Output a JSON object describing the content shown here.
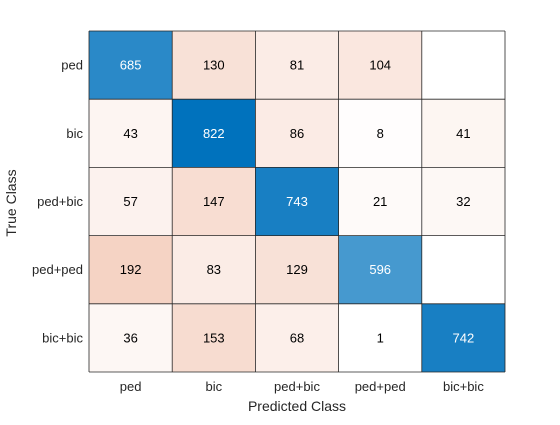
{
  "chart_data": {
    "type": "heatmap",
    "subtype": "confusion_matrix",
    "xlabel": "Predicted Class",
    "ylabel": "True Class",
    "row_labels": [
      "ped",
      "bic",
      "ped+bic",
      "ped+ped",
      "bic+bic"
    ],
    "col_labels": [
      "ped",
      "bic",
      "ped+bic",
      "ped+ped",
      "bic+bic"
    ],
    "values": [
      [
        685,
        130,
        81,
        104,
        null
      ],
      [
        43,
        822,
        86,
        8,
        41
      ],
      [
        57,
        147,
        743,
        21,
        32
      ],
      [
        192,
        83,
        129,
        596,
        null
      ],
      [
        36,
        153,
        68,
        1,
        742
      ]
    ],
    "colors": {
      "diagonal_max": "#0072bd",
      "off_diagonal_max": "#d95319",
      "empty_cell": "#ffffff",
      "grid_line": "#262626",
      "text_dark": "#000000",
      "text_light": "#ffffff"
    }
  }
}
